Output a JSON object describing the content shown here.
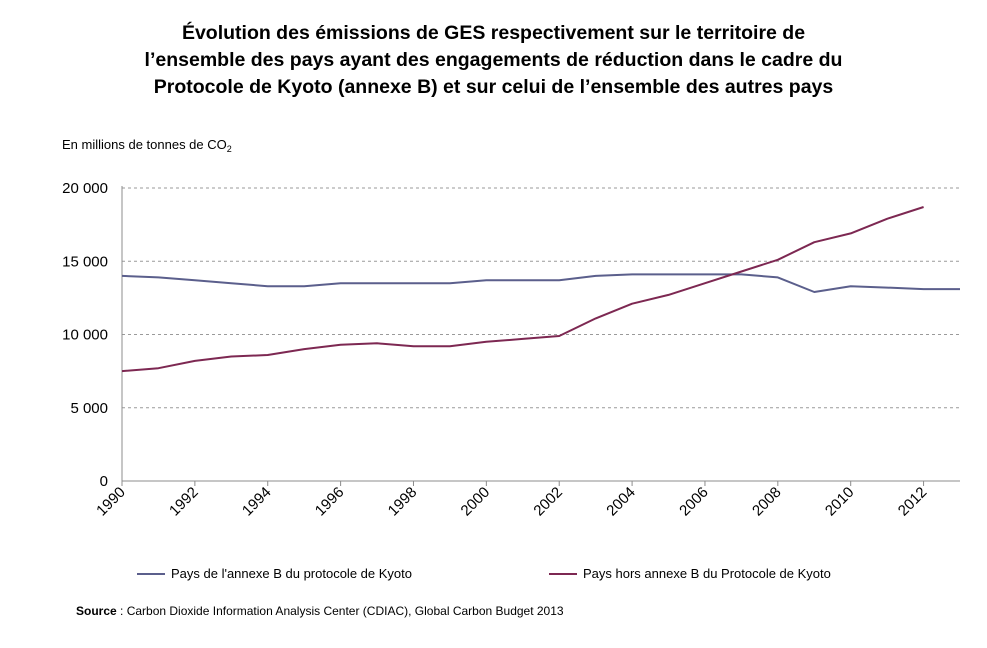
{
  "chart_data": {
    "type": "line",
    "title_lines": [
      "Évolution des émissions de GES respectivement sur le territoire de",
      "l’ensemble des pays ayant des engagements de réduction dans le cadre du",
      "Protocole de Kyoto (annexe B) et sur celui de l’ensemble des autres pays"
    ],
    "ylabel_prefix": "En millions de tonnes de CO",
    "ylabel_subscript": "2",
    "ylim": [
      0,
      20000
    ],
    "y_ticks": [
      0,
      5000,
      10000,
      15000,
      20000
    ],
    "y_tick_labels": [
      "0",
      "5 000",
      "10 000",
      "15 000",
      "20 000"
    ],
    "xlim": [
      1990,
      2013
    ],
    "x_ticks": [
      1990,
      1992,
      1994,
      1996,
      1998,
      2000,
      2002,
      2004,
      2006,
      2008,
      2010,
      2012
    ],
    "x_tick_labels": [
      "1990",
      "1992",
      "1994",
      "1996",
      "1998",
      "2000",
      "2002",
      "2004",
      "2006",
      "2008",
      "2010",
      "2012"
    ],
    "grid": "horizontal dashed",
    "legend_position": "bottom",
    "series": [
      {
        "name": "Pays de l'annexe B du protocole de Kyoto",
        "color": "#5b5f8c",
        "x": [
          1990,
          1991,
          1992,
          1993,
          1994,
          1995,
          1996,
          1997,
          1998,
          1999,
          2000,
          2001,
          2002,
          2003,
          2004,
          2005,
          2006,
          2007,
          2008,
          2009,
          2010,
          2011,
          2012,
          2013
        ],
        "values": [
          14000,
          13900,
          13700,
          13500,
          13300,
          13300,
          13500,
          13500,
          13500,
          13500,
          13700,
          13700,
          13700,
          14000,
          14100,
          14100,
          14100,
          14100,
          13900,
          12900,
          13300,
          13200,
          13100,
          13100
        ]
      },
      {
        "name": "Pays hors annexe B du Protocole de Kyoto",
        "color": "#7d2852",
        "x": [
          1990,
          1991,
          1992,
          1993,
          1994,
          1995,
          1996,
          1997,
          1998,
          1999,
          2000,
          2001,
          2002,
          2003,
          2004,
          2005,
          2006,
          2007,
          2008,
          2009,
          2010,
          2011,
          2012
        ],
        "values": [
          7500,
          7700,
          8200,
          8500,
          8600,
          9000,
          9300,
          9400,
          9200,
          9200,
          9500,
          9700,
          9900,
          11100,
          12100,
          12700,
          13500,
          14300,
          15100,
          16300,
          16900,
          17900,
          18700
        ]
      }
    ]
  },
  "source": {
    "label": "Source",
    "text": " : Carbon Dioxide Information Analysis Center (CDIAC), Global Carbon Budget 2013"
  }
}
